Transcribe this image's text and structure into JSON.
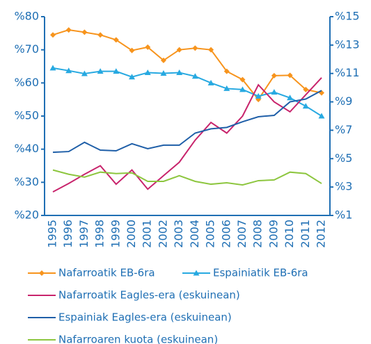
{
  "chart_data": {
    "type": "line",
    "categories": [
      "1995",
      "1996",
      "1997",
      "1998",
      "1999",
      "2000",
      "2001",
      "2002",
      "2003",
      "2004",
      "2005",
      "2006",
      "2007",
      "2008",
      "2009",
      "2010",
      "2011",
      "2012"
    ],
    "ylim": [
      20,
      80
    ],
    "yticks": [
      {
        "value": 20,
        "label": "%20"
      },
      {
        "value": 30,
        "label": "%30"
      },
      {
        "value": 40,
        "label": "%40"
      },
      {
        "value": 50,
        "label": "%50"
      },
      {
        "value": 60,
        "label": "%60"
      },
      {
        "value": 70,
        "label": "%70"
      },
      {
        "value": 80,
        "label": "%80"
      }
    ],
    "y2lim": [
      1,
      15
    ],
    "y2ticks": [
      {
        "value": 1,
        "label": "%1"
      },
      {
        "value": 3,
        "label": "%3"
      },
      {
        "value": 5,
        "label": "%5"
      },
      {
        "value": 7,
        "label": "%7"
      },
      {
        "value": 9,
        "label": "%9"
      },
      {
        "value": 11,
        "label": "%11"
      },
      {
        "value": 13,
        "label": "%13"
      },
      {
        "value": 15,
        "label": "%15"
      }
    ],
    "grid": false,
    "legend": "bottom",
    "series": [
      {
        "name": "Nafarroatik EB-6ra",
        "color": "#f7941d",
        "marker": "diamond",
        "axis": "y",
        "values": [
          74.5,
          76,
          75.3,
          74.5,
          73,
          69.8,
          70.8,
          66.8,
          70,
          70.5,
          70,
          63.5,
          61,
          55,
          62.2,
          62.3,
          58,
          57
        ]
      },
      {
        "name": "Espainiatik EB-6ra",
        "color": "#27a9e1",
        "marker": "triangle",
        "axis": "y",
        "values": [
          64.5,
          63.7,
          62.8,
          63.5,
          63.5,
          61.8,
          63.1,
          62.9,
          63.1,
          62,
          60,
          58.3,
          58,
          56,
          57.2,
          55.5,
          53,
          50
        ]
      },
      {
        "name": "Nafarroatik Eagles-era (eskuinean)",
        "color": "#c8246c",
        "axis": "y2",
        "values": [
          2.66,
          3.25,
          3.9,
          4.5,
          3.2,
          4.2,
          2.85,
          3.8,
          4.75,
          6.3,
          7.55,
          6.8,
          8.0,
          10.2,
          9.0,
          8.3,
          9.5,
          10.7
        ]
      },
      {
        "name": "Espainiak Eagles-era (eskuinean)",
        "color": "#1f5fa8",
        "axis": "y2",
        "values": [
          5.45,
          5.5,
          6.15,
          5.6,
          5.55,
          6.05,
          5.7,
          5.95,
          5.95,
          6.8,
          7.1,
          7.2,
          7.6,
          7.95,
          8.05,
          9.0,
          9.2,
          9.8
        ]
      },
      {
        "name": "Nafarroaren kuota (eskuinean)",
        "color": "#8dc63f",
        "axis": "y2",
        "values": [
          4.2,
          3.9,
          3.7,
          4.05,
          3.95,
          4.0,
          3.4,
          3.4,
          3.8,
          3.4,
          3.2,
          3.3,
          3.15,
          3.45,
          3.5,
          4.05,
          3.95,
          3.25
        ]
      }
    ]
  }
}
